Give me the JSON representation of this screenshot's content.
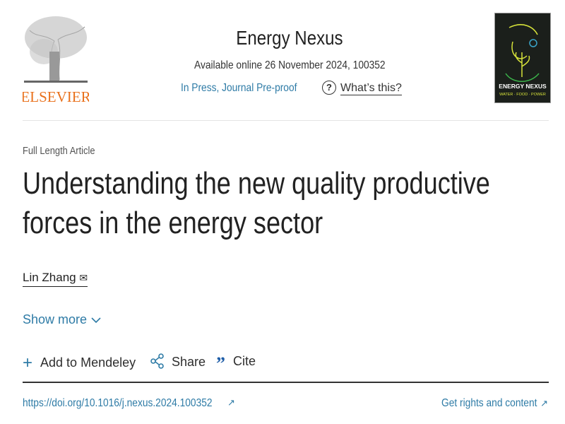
{
  "header": {
    "publisher_logo": "ELSEVIER",
    "journal_title": "Energy Nexus",
    "availability": "Available online 26 November 2024, 100352",
    "status": "In Press, Journal Pre-proof",
    "help_icon": "question-circle-icon",
    "help_link": "What’s this?",
    "cover": {
      "title": "ENERGY NEXUS",
      "subtitle": "WATER · FOOD · POWER"
    }
  },
  "article": {
    "type": "Full Length Article",
    "title_line1": "Understanding the new quality productive",
    "title_line2": "forces in the energy sector",
    "author": "Lin Zhang",
    "author_icon": "envelope-icon",
    "show_more": "Show more"
  },
  "actions": [
    {
      "label": "Add to Mendeley",
      "icon": "plus-icon"
    },
    {
      "label": "Share",
      "icon": "share-icon"
    },
    {
      "label": "Cite",
      "icon": "quote-icon"
    }
  ],
  "links": {
    "doi": "https://doi.org/10.1016/j.nexus.2024.100352",
    "rights": "Get rights and content"
  },
  "colors": {
    "link": "#2e7ba6",
    "elsevier_orange": "#e9711c"
  }
}
